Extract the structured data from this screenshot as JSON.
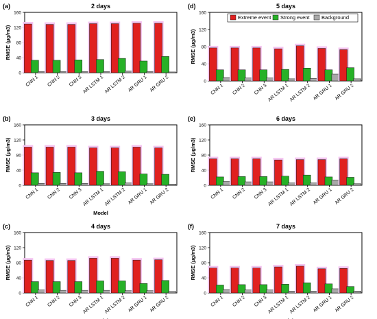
{
  "colors": {
    "extreme": "#e02020",
    "strong": "#27b127",
    "background": "#a8a8a8",
    "halo": "#f4c4f0"
  },
  "legend": {
    "entries": [
      "Extreme event",
      "Strong event",
      "Background"
    ]
  },
  "chart_data": [
    {
      "panel": "(a)",
      "title": "2 days",
      "type": "bar",
      "xlabel": "",
      "ylabel": "RMSE (μg/m3)",
      "ylim": [
        0,
        160
      ],
      "yticks": [
        0,
        40,
        80,
        120,
        160
      ],
      "categories": [
        "CNN 1",
        "CNN 2",
        "CNN 3",
        "AR LSTM 1",
        "AR LSTM 2",
        "AR GRU 1",
        "AR GRU 2"
      ],
      "series": [
        {
          "name": "Extreme event",
          "values": [
            129,
            128,
            128,
            130,
            130,
            131,
            131
          ]
        },
        {
          "name": "Strong event",
          "values": [
            33,
            33,
            34,
            35,
            38,
            31,
            43
          ]
        },
        {
          "name": "Background",
          "values": [
            3,
            3,
            3,
            3,
            5,
            3,
            2
          ]
        }
      ]
    },
    {
      "panel": "(b)",
      "title": "3 days",
      "type": "bar",
      "xlabel": "Model",
      "ylabel": "RMSE (μg/m3)",
      "ylim": [
        0,
        160
      ],
      "yticks": [
        0,
        40,
        80,
        120,
        160
      ],
      "categories": [
        "CNN 1",
        "CNN 2",
        "CNN 3",
        "AR LSTM 1",
        "AR LSTM 2",
        "AR GRU 1",
        "AR GRU 2"
      ],
      "series": [
        {
          "name": "Extreme event",
          "values": [
            101,
            101,
            101,
            99,
            99,
            101,
            99
          ]
        },
        {
          "name": "Strong event",
          "values": [
            33,
            34,
            33,
            37,
            36,
            30,
            29
          ]
        },
        {
          "name": "Background",
          "values": [
            5,
            5,
            5,
            4,
            6,
            4,
            3
          ]
        }
      ]
    },
    {
      "panel": "(c)",
      "title": "4 days",
      "type": "bar",
      "xlabel": "Model",
      "ylabel": "RMSE (μg/m3)",
      "ylim": [
        0,
        160
      ],
      "yticks": [
        0,
        40,
        80,
        120,
        160
      ],
      "categories": [
        "CNN 1",
        "CNN 2",
        "CNN 3",
        "AR LSTM 1",
        "AR LSTM 2",
        "AR GRU 1",
        "AR GRU 2"
      ],
      "series": [
        {
          "name": "Extreme event",
          "values": [
            87,
            86,
            86,
            92,
            92,
            87,
            88
          ]
        },
        {
          "name": "Strong event",
          "values": [
            30,
            30,
            30,
            32,
            32,
            25,
            33
          ]
        },
        {
          "name": "Background",
          "values": [
            8,
            7,
            7,
            7,
            6,
            6,
            4
          ]
        }
      ]
    },
    {
      "panel": "(d)",
      "title": "5 days",
      "type": "bar",
      "xlabel": "",
      "ylabel": "RMSE (μg/m3)",
      "ylim": [
        0,
        160
      ],
      "yticks": [
        0,
        40,
        80,
        120,
        160
      ],
      "categories": [
        "CNN 1",
        "CNN 2",
        "CNN 3",
        "AR LSTM 1",
        "AR LSTM 2",
        "AR GRU 1",
        "AR GRU 2"
      ],
      "series": [
        {
          "name": "Extreme event",
          "values": [
            77,
            77,
            77,
            75,
            82,
            76,
            73
          ]
        },
        {
          "name": "Strong event",
          "values": [
            26,
            26,
            26,
            27,
            30,
            26,
            31
          ]
        },
        {
          "name": "Background",
          "values": [
            8,
            7,
            7,
            5,
            6,
            16,
            5
          ]
        }
      ]
    },
    {
      "panel": "(e)",
      "title": "6 days",
      "type": "bar",
      "xlabel": "",
      "ylabel": "RMSE (μg/m3)",
      "ylim": [
        0,
        160
      ],
      "yticks": [
        0,
        40,
        80,
        120,
        160
      ],
      "categories": [
        "CNN 1",
        "CNN 2",
        "CNN 3",
        "AR LSTM 1",
        "AR LSTM 2",
        "AR GRU 1",
        "AR GRU 2"
      ],
      "series": [
        {
          "name": "Extreme event",
          "values": [
            70,
            70,
            70,
            67,
            68,
            68,
            70
          ]
        },
        {
          "name": "Strong event",
          "values": [
            22,
            23,
            23,
            24,
            27,
            22,
            21
          ]
        },
        {
          "name": "Background",
          "values": [
            10,
            9,
            9,
            6,
            6,
            14,
            4
          ]
        }
      ]
    },
    {
      "panel": "(f)",
      "title": "7 days",
      "type": "bar",
      "xlabel": "Model",
      "ylabel": "RMSE (μg/m3)",
      "ylim": [
        0,
        160
      ],
      "yticks": [
        0,
        40,
        80,
        120,
        160
      ],
      "categories": [
        "CNN 1",
        "CNN 2",
        "CNN 3",
        "AR LSTM 1",
        "AR LSTM 2",
        "AR GRU 1",
        "AR GRU 2"
      ],
      "series": [
        {
          "name": "Extreme event",
          "values": [
            66,
            66,
            66,
            69,
            71,
            64,
            65
          ]
        },
        {
          "name": "Strong event",
          "values": [
            21,
            22,
            22,
            23,
            27,
            24,
            17
          ]
        },
        {
          "name": "Background",
          "values": [
            9,
            8,
            8,
            5,
            5,
            11,
            5
          ]
        }
      ]
    }
  ]
}
